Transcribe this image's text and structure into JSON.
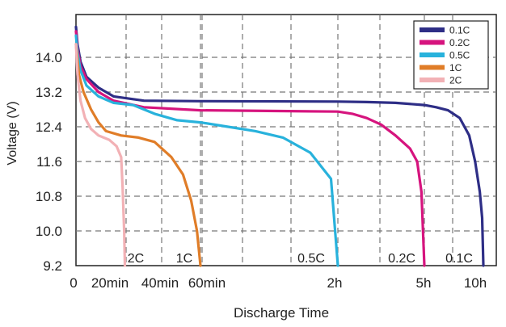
{
  "chart_data": {
    "type": "line",
    "title": "",
    "xlabel": "Discharge Time",
    "ylabel": "Voltage (V)",
    "y_ticks": [
      "14.0",
      "13.2",
      "12.4",
      "11.6",
      "10.8",
      "10.0",
      "9.2"
    ],
    "ylim": [
      9.2,
      14.8
    ],
    "x_ticks": [
      "0",
      "20min",
      "40min",
      "60min",
      "2h",
      "5h",
      "10h"
    ],
    "x_tick_hours": [
      0,
      0.333,
      0.667,
      1.0,
      2.0,
      5.0,
      10.0
    ],
    "grid": true,
    "legend_position": "top-right",
    "series": [
      {
        "name": "0.1C",
        "color": "#2e2e86",
        "end_label": "0.1C",
        "points": [
          [
            0,
            14.7
          ],
          [
            0.01,
            14.3
          ],
          [
            0.03,
            13.9
          ],
          [
            0.07,
            13.55
          ],
          [
            0.15,
            13.3
          ],
          [
            0.25,
            13.1
          ],
          [
            0.5,
            13.0
          ],
          [
            1.0,
            12.99
          ],
          [
            2.0,
            12.98
          ],
          [
            3.0,
            12.97
          ],
          [
            4.0,
            12.95
          ],
          [
            5.0,
            12.9
          ],
          [
            6.0,
            12.85
          ],
          [
            7.0,
            12.78
          ],
          [
            8.0,
            12.6
          ],
          [
            8.8,
            12.2
          ],
          [
            9.3,
            11.6
          ],
          [
            9.7,
            10.9
          ],
          [
            9.9,
            10.3
          ],
          [
            10.0,
            9.2
          ]
        ]
      },
      {
        "name": "0.2C",
        "color": "#d6147e",
        "end_label": "0.2C",
        "points": [
          [
            0,
            14.6
          ],
          [
            0.01,
            14.2
          ],
          [
            0.03,
            13.8
          ],
          [
            0.07,
            13.5
          ],
          [
            0.15,
            13.2
          ],
          [
            0.25,
            13.0
          ],
          [
            0.5,
            12.85
          ],
          [
            1.0,
            12.78
          ],
          [
            2.0,
            12.75
          ],
          [
            2.5,
            12.7
          ],
          [
            3.0,
            12.6
          ],
          [
            3.5,
            12.45
          ],
          [
            4.0,
            12.2
          ],
          [
            4.5,
            11.9
          ],
          [
            4.75,
            11.6
          ],
          [
            4.9,
            10.9
          ],
          [
            5.0,
            9.2
          ]
        ]
      },
      {
        "name": "0.5C",
        "color": "#28b2dc",
        "end_label": "0.5C",
        "points": [
          [
            0,
            14.5
          ],
          [
            0.01,
            14.1
          ],
          [
            0.03,
            13.7
          ],
          [
            0.07,
            13.35
          ],
          [
            0.15,
            13.1
          ],
          [
            0.25,
            12.95
          ],
          [
            0.4,
            12.9
          ],
          [
            0.6,
            12.7
          ],
          [
            0.8,
            12.55
          ],
          [
            1.0,
            12.5
          ],
          [
            1.2,
            12.4
          ],
          [
            1.4,
            12.3
          ],
          [
            1.6,
            12.15
          ],
          [
            1.8,
            11.8
          ],
          [
            1.95,
            11.2
          ],
          [
            2.0,
            9.2
          ]
        ]
      },
      {
        "name": "1C",
        "color": "#e07d28",
        "end_label": "1C",
        "points": [
          [
            0,
            14.3
          ],
          [
            0.02,
            13.6
          ],
          [
            0.05,
            13.2
          ],
          [
            0.1,
            12.8
          ],
          [
            0.15,
            12.5
          ],
          [
            0.2,
            12.3
          ],
          [
            0.3,
            12.2
          ],
          [
            0.45,
            12.15
          ],
          [
            0.6,
            12.05
          ],
          [
            0.75,
            11.7
          ],
          [
            0.85,
            11.3
          ],
          [
            0.92,
            10.7
          ],
          [
            0.97,
            10.0
          ],
          [
            1.0,
            9.2
          ]
        ]
      },
      {
        "name": "2C",
        "color": "#f2b1b5",
        "end_label": "2C",
        "points": [
          [
            0,
            14.3
          ],
          [
            0.01,
            13.6
          ],
          [
            0.03,
            13.0
          ],
          [
            0.06,
            12.6
          ],
          [
            0.1,
            12.35
          ],
          [
            0.15,
            12.2
          ],
          [
            0.22,
            12.1
          ],
          [
            0.27,
            11.95
          ],
          [
            0.3,
            11.7
          ],
          [
            0.31,
            11.0
          ],
          [
            0.32,
            10.0
          ],
          [
            0.325,
            9.2
          ]
        ]
      }
    ]
  }
}
